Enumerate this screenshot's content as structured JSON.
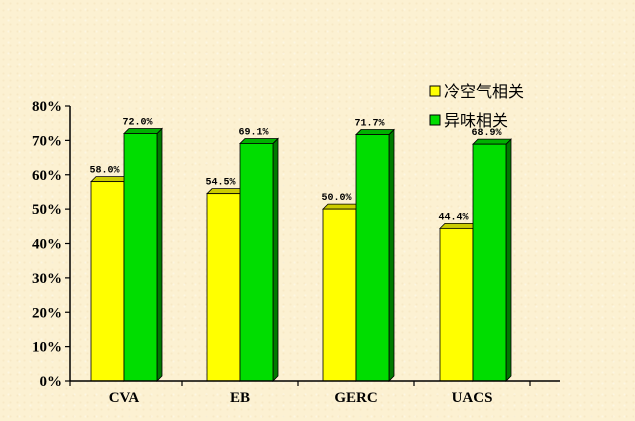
{
  "chart_data": {
    "type": "bar",
    "categories": [
      "CVA",
      "EB",
      "GERC",
      "UACS"
    ],
    "series": [
      {
        "name": "冷空气相关",
        "color": "#ffff00",
        "values": [
          58.0,
          54.5,
          50.0,
          44.4
        ],
        "labels": [
          "58.0%",
          "54.5%",
          "50.0%",
          "44.4%"
        ]
      },
      {
        "name": "异味相关",
        "color": "#00dd00",
        "values": [
          72.0,
          69.1,
          71.7,
          68.9
        ],
        "labels": [
          "72.0%",
          "69.1%",
          "71.7%",
          "68.9%"
        ]
      }
    ],
    "ylim": [
      0,
      80
    ],
    "yticks": [
      0,
      10,
      20,
      30,
      40,
      50,
      60,
      70,
      80
    ],
    "ytick_labels": [
      "0%",
      "10%",
      "20%",
      "30%",
      "40%",
      "50%",
      "60%",
      "70%",
      "80%"
    ],
    "title": "",
    "xlabel": "",
    "ylabel": "",
    "grid": false,
    "legend_position": "top-right",
    "style": "3d-bar"
  }
}
